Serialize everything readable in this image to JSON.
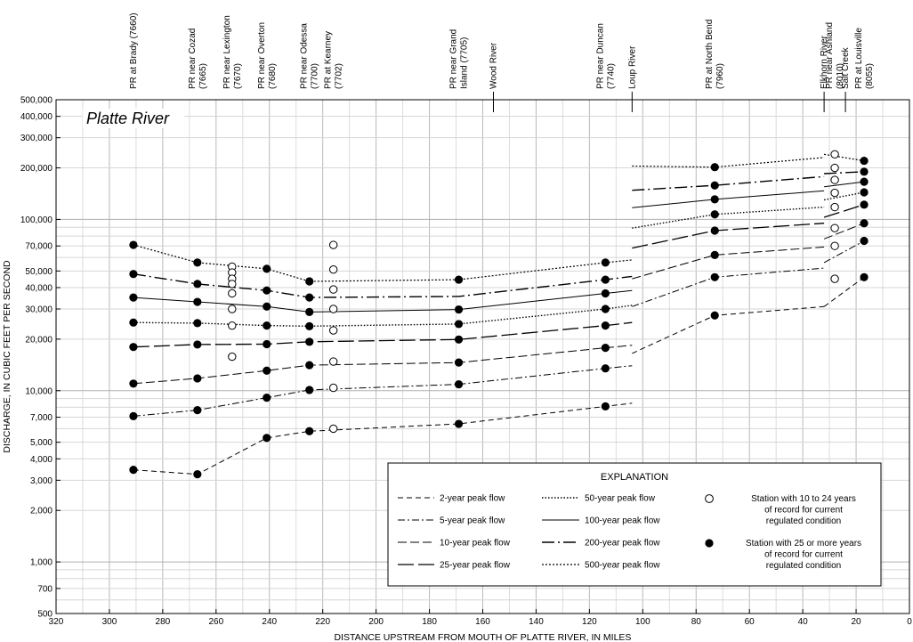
{
  "chart_data": {
    "type": "line",
    "title": "Platte River",
    "xlabel": "DISTANCE UPSTREAM FROM MOUTH OF PLATTE RIVER, IN MILES",
    "ylabel": "DISCHARGE, IN CUBIC FEET PER SECOND",
    "x_scale": "linear",
    "y_scale": "log",
    "xlim": [
      320,
      0
    ],
    "ylim": [
      500,
      500000
    ],
    "grid": true,
    "x_ticks": [
      320,
      300,
      280,
      260,
      240,
      220,
      200,
      180,
      160,
      140,
      120,
      100,
      80,
      60,
      40,
      20,
      0
    ],
    "y_ticks": [
      {
        "v": 500,
        "label": "500"
      },
      {
        "v": 700,
        "label": "700"
      },
      {
        "v": 1000,
        "label": "1,000"
      },
      {
        "v": 2000,
        "label": "2,000"
      },
      {
        "v": 3000,
        "label": "3,000"
      },
      {
        "v": 4000,
        "label": "4,000"
      },
      {
        "v": 5000,
        "label": "5,000"
      },
      {
        "v": 7000,
        "label": "7,000"
      },
      {
        "v": 10000,
        "label": "10,000"
      },
      {
        "v": 20000,
        "label": "20,000"
      },
      {
        "v": 30000,
        "label": "30,000"
      },
      {
        "v": 40000,
        "label": "40,000"
      },
      {
        "v": 50000,
        "label": "50,000"
      },
      {
        "v": 70000,
        "label": "70,000"
      },
      {
        "v": 100000,
        "label": "100,000"
      },
      {
        "v": 200000,
        "label": "200,000"
      },
      {
        "v": 300000,
        "label": "300,000"
      },
      {
        "v": 400000,
        "label": "400,000"
      },
      {
        "v": 500000,
        "label": "500,000"
      }
    ],
    "site_labels": [
      {
        "x": 291,
        "lines": [
          "PR at Brady (7660)"
        ]
      },
      {
        "x": 267,
        "lines": [
          "PR near Cozad",
          "(7665)"
        ]
      },
      {
        "x": 254,
        "lines": [
          "PR near Lexington",
          "(7670)"
        ]
      },
      {
        "x": 241,
        "lines": [
          "PR near Overton",
          "(7680)"
        ]
      },
      {
        "x": 225,
        "lines": [
          "PR near Odessa",
          "(7700)"
        ]
      },
      {
        "x": 216,
        "lines": [
          "PR at Kearney",
          "(7702)"
        ]
      },
      {
        "x": 169,
        "lines": [
          "PR near Grand",
          "Island (7705)"
        ]
      },
      {
        "x": 156,
        "lines": [
          "Wood River"
        ],
        "tick": true
      },
      {
        "x": 114,
        "lines": [
          "PR near Duncan",
          "(7740)"
        ]
      },
      {
        "x": 104,
        "lines": [
          "Loup River"
        ],
        "tick": true
      },
      {
        "x": 73,
        "lines": [
          "PR at North Bend",
          "(7960)"
        ]
      },
      {
        "x": 32,
        "lines": [
          "Elkhorn River"
        ],
        "tick": true
      },
      {
        "x": 28,
        "lines": [
          "PR near Ashland",
          "(8010)"
        ]
      },
      {
        "x": 24,
        "lines": [
          "Salt Creek"
        ],
        "tick": true
      },
      {
        "x": 17,
        "lines": [
          "PR at Louisville",
          "(8055)"
        ]
      }
    ],
    "series": [
      {
        "name": "2-year peak flow",
        "dash": "6 4",
        "width": 1,
        "segments": [
          [
            [
              291,
              3450
            ],
            [
              267,
              3250
            ],
            [
              241,
              5300
            ],
            [
              225,
              5800
            ],
            [
              169,
              6400
            ],
            [
              114,
              8100
            ],
            [
              104,
              8450
            ]
          ],
          [
            [
              104,
              16500
            ],
            [
              73,
              27500
            ],
            [
              32,
              31000
            ]
          ],
          [
            [
              32,
              31000
            ],
            [
              17,
              46000
            ]
          ]
        ]
      },
      {
        "name": "5-year peak flow",
        "dash": "8 3 2 3",
        "width": 1,
        "segments": [
          [
            [
              291,
              7100
            ],
            [
              267,
              7700
            ],
            [
              241,
              9100
            ],
            [
              225,
              10100
            ],
            [
              169,
              10900
            ],
            [
              114,
              13500
            ],
            [
              104,
              14000
            ]
          ],
          [
            [
              104,
              31000
            ],
            [
              73,
              46000
            ],
            [
              32,
              52000
            ]
          ],
          [
            [
              32,
              56000
            ],
            [
              17,
              75000
            ]
          ]
        ]
      },
      {
        "name": "10-year peak flow",
        "dash": "10 4",
        "width": 1,
        "segments": [
          [
            [
              291,
              11000
            ],
            [
              267,
              11800
            ],
            [
              241,
              13100
            ],
            [
              225,
              14100
            ],
            [
              169,
              14600
            ],
            [
              114,
              17800
            ],
            [
              104,
              18400
            ]
          ],
          [
            [
              104,
              45000
            ],
            [
              73,
              62000
            ],
            [
              32,
              69000
            ]
          ],
          [
            [
              32,
              77000
            ],
            [
              17,
              95000
            ]
          ]
        ]
      },
      {
        "name": "25-year peak flow",
        "dash": "18 5",
        "width": 1.3,
        "segments": [
          [
            [
              291,
              18000
            ],
            [
              267,
              18600
            ],
            [
              241,
              18700
            ],
            [
              225,
              19300
            ],
            [
              169,
              19900
            ],
            [
              114,
              24000
            ],
            [
              104,
              25000
            ]
          ],
          [
            [
              104,
              68000
            ],
            [
              73,
              86000
            ],
            [
              32,
              95000
            ]
          ],
          [
            [
              32,
              103000
            ],
            [
              17,
              122000
            ]
          ]
        ]
      },
      {
        "name": "50-year peak flow",
        "dash": "1.5 2",
        "width": 1.4,
        "segments": [
          [
            [
              291,
              25000
            ],
            [
              267,
              24800
            ],
            [
              241,
              24000
            ],
            [
              225,
              23800
            ],
            [
              169,
              24500
            ],
            [
              114,
              30000
            ],
            [
              104,
              31500
            ]
          ],
          [
            [
              104,
              89000
            ],
            [
              73,
              107000
            ],
            [
              32,
              118000
            ]
          ],
          [
            [
              32,
              130000
            ],
            [
              17,
              144000
            ]
          ]
        ]
      },
      {
        "name": "100-year peak flow",
        "dash": "",
        "width": 1,
        "segments": [
          [
            [
              291,
              35000
            ],
            [
              267,
              33000
            ],
            [
              241,
              31000
            ],
            [
              225,
              28800
            ],
            [
              169,
              29800
            ],
            [
              114,
              37000
            ],
            [
              104,
              38500
            ]
          ],
          [
            [
              104,
              117000
            ],
            [
              73,
              131000
            ],
            [
              32,
              147000
            ]
          ],
          [
            [
              32,
              155000
            ],
            [
              17,
              166000
            ]
          ]
        ]
      },
      {
        "name": "200-year peak flow",
        "dash": "14 4 2 4",
        "width": 1.4,
        "segments": [
          [
            [
              291,
              48000
            ],
            [
              267,
              42000
            ],
            [
              241,
              38500
            ],
            [
              225,
              35000
            ],
            [
              169,
              35500
            ],
            [
              114,
              44500
            ],
            [
              104,
              46500
            ]
          ],
          [
            [
              104,
              148000
            ],
            [
              73,
              158000
            ],
            [
              32,
              178000
            ]
          ],
          [
            [
              32,
              185000
            ],
            [
              17,
              190000
            ]
          ]
        ]
      },
      {
        "name": "500-year peak flow",
        "dash": "2 2",
        "width": 1.2,
        "segments": [
          [
            [
              291,
              71000
            ],
            [
              267,
              56000
            ],
            [
              241,
              51500
            ],
            [
              225,
              43500
            ],
            [
              169,
              44500
            ],
            [
              114,
              56000
            ],
            [
              104,
              58000
            ]
          ],
          [
            [
              104,
              205000
            ],
            [
              73,
              202000
            ],
            [
              32,
              230000
            ]
          ],
          [
            [
              32,
              240000
            ],
            [
              17,
              220000
            ]
          ]
        ]
      }
    ],
    "stations_25_plus": [
      [
        291,
        71000
      ],
      [
        291,
        48000
      ],
      [
        291,
        35000
      ],
      [
        291,
        25000
      ],
      [
        291,
        18000
      ],
      [
        291,
        11000
      ],
      [
        291,
        7100
      ],
      [
        291,
        3450
      ],
      [
        267,
        56000
      ],
      [
        267,
        42000
      ],
      [
        267,
        33000
      ],
      [
        267,
        24800
      ],
      [
        267,
        18600
      ],
      [
        267,
        11800
      ],
      [
        267,
        7700
      ],
      [
        267,
        3250
      ],
      [
        241,
        51500
      ],
      [
        241,
        38500
      ],
      [
        241,
        31000
      ],
      [
        241,
        24000
      ],
      [
        241,
        18700
      ],
      [
        241,
        13100
      ],
      [
        241,
        9100
      ],
      [
        241,
        5300
      ],
      [
        225,
        43500
      ],
      [
        225,
        35000
      ],
      [
        225,
        28800
      ],
      [
        225,
        23800
      ],
      [
        225,
        19300
      ],
      [
        225,
        14100
      ],
      [
        225,
        10100
      ],
      [
        225,
        5800
      ],
      [
        169,
        44500
      ],
      [
        169,
        29800
      ],
      [
        169,
        24500
      ],
      [
        169,
        19900
      ],
      [
        169,
        14600
      ],
      [
        169,
        10900
      ],
      [
        169,
        6400
      ],
      [
        114,
        56000
      ],
      [
        114,
        44500
      ],
      [
        114,
        37000
      ],
      [
        114,
        30000
      ],
      [
        114,
        24000
      ],
      [
        114,
        17800
      ],
      [
        114,
        13500
      ],
      [
        114,
        8100
      ],
      [
        73,
        202000
      ],
      [
        73,
        158000
      ],
      [
        73,
        131000
      ],
      [
        73,
        107000
      ],
      [
        73,
        86000
      ],
      [
        73,
        62000
      ],
      [
        73,
        46000
      ],
      [
        73,
        27500
      ],
      [
        17,
        220000
      ],
      [
        17,
        190000
      ],
      [
        17,
        166000
      ],
      [
        17,
        144000
      ],
      [
        17,
        122000
      ],
      [
        17,
        95000
      ],
      [
        17,
        75000
      ],
      [
        17,
        46000
      ]
    ],
    "stations_10_to_24": [
      [
        254,
        53000
      ],
      [
        254,
        49000
      ],
      [
        254,
        45000
      ],
      [
        254,
        42000
      ],
      [
        254,
        37000
      ],
      [
        254,
        30000
      ],
      [
        254,
        24000
      ],
      [
        254,
        15800
      ],
      [
        216,
        71000
      ],
      [
        216,
        51000
      ],
      [
        216,
        39000
      ],
      [
        216,
        30000
      ],
      [
        216,
        22500
      ],
      [
        216,
        14800
      ],
      [
        216,
        10400
      ],
      [
        216,
        6000
      ],
      [
        28,
        240000
      ],
      [
        28,
        200000
      ],
      [
        28,
        170000
      ],
      [
        28,
        143000
      ],
      [
        28,
        118000
      ],
      [
        28,
        89000
      ],
      [
        28,
        70000
      ],
      [
        28,
        45000
      ]
    ],
    "legend": {
      "title": "EXPLANATION",
      "items": [
        {
          "label": "2-year peak flow",
          "series": 0
        },
        {
          "label": "5-year peak flow",
          "series": 1
        },
        {
          "label": "10-year peak flow",
          "series": 2
        },
        {
          "label": "25-year peak flow",
          "series": 3
        },
        {
          "label": "50-year peak flow",
          "series": 4
        },
        {
          "label": "100-year peak flow",
          "series": 5
        },
        {
          "label": "200-year peak flow",
          "series": 6
        },
        {
          "label": "500-year peak flow",
          "series": 7
        }
      ],
      "markers": [
        {
          "filled": false,
          "lines": [
            "Station with 10 to 24 years",
            "of record for current",
            "regulated condition"
          ]
        },
        {
          "filled": true,
          "lines": [
            "Station with 25 or more years",
            "of record for current",
            "regulated condition"
          ]
        }
      ]
    }
  }
}
